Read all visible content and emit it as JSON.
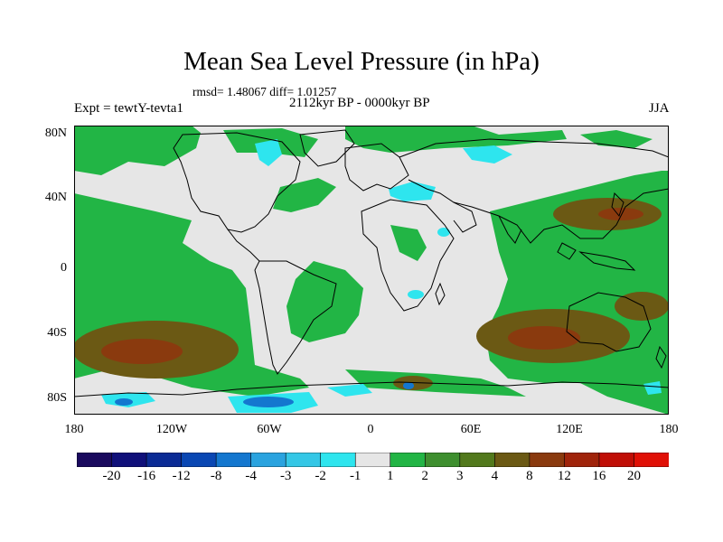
{
  "title": "Mean Sea Level Pressure (in hPa)",
  "stats": "rmsd= 1.48067  diff= 1.01257",
  "left_label": "Expt = tewtY-tevta1",
  "center_label": "2112kyr BP - 0000kyr BP",
  "right_label": "JJA",
  "lat_labels": [
    "80N",
    "40N",
    "0",
    "40S",
    "80S"
  ],
  "lon_labels": [
    "180",
    "120W",
    "60W",
    "0",
    "60E",
    "120E",
    "180"
  ],
  "colorbar": {
    "colors": [
      "#1a0a5e",
      "#10107a",
      "#0b2b95",
      "#0a47b3",
      "#1477cf",
      "#2aa3df",
      "#34c7e6",
      "#2ee5ee",
      "#e6e6e6",
      "#22b545",
      "#3e8f2f",
      "#52791c",
      "#6b5914",
      "#8a3a0e",
      "#a0240b",
      "#c00e06",
      "#e01006"
    ],
    "labels": [
      "-20",
      "-16",
      "-12",
      "-8",
      "-4",
      "-3",
      "-2",
      "-1",
      "1",
      "2",
      "3",
      "4",
      "8",
      "12",
      "16",
      "20"
    ]
  },
  "map_colors": {
    "ocean": "#e6e6e6",
    "positive_small": "#22b545",
    "positive_mid": "#6b5914",
    "positive_large": "#8a3a0e",
    "negative_small": "#2ee5ee",
    "negative_mid": "#1477cf",
    "coast": "#000000"
  }
}
